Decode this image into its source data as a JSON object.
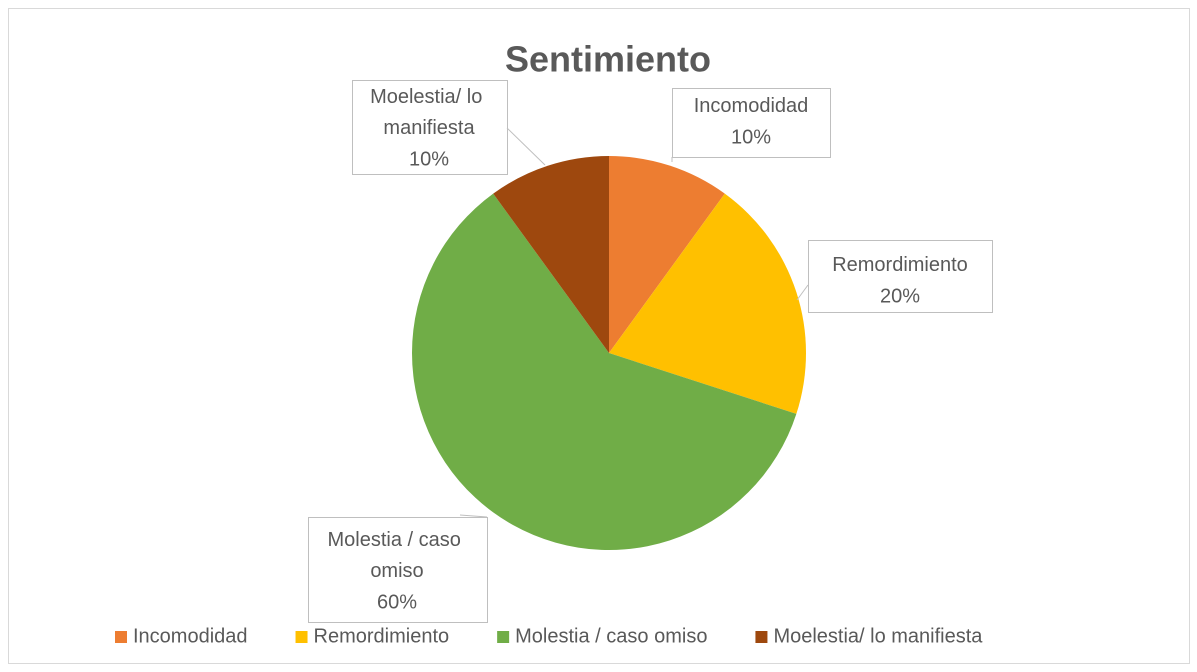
{
  "chart_data": {
    "type": "pie",
    "title": "Sentimiento",
    "categories": [
      "Incomodidad",
      "Remordimiento",
      "Molestia / caso omiso",
      "Moelestia/ lo manifiesta"
    ],
    "values": [
      10,
      20,
      60,
      10
    ],
    "value_labels": [
      "10%",
      "20%",
      "60%",
      "10%"
    ],
    "colors": [
      "#ed7d31",
      "#ffc000",
      "#70ad47",
      "#9e480e"
    ],
    "legend": "bottom"
  }
}
